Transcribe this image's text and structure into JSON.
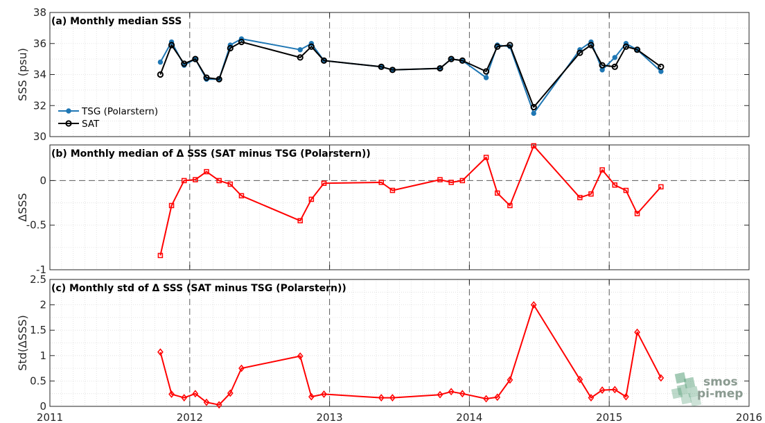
{
  "chart_data": [
    {
      "id": "a",
      "type": "line",
      "title": "(a) Monthly median SSS",
      "ylabel": "SSS (psu)",
      "ylim": [
        30,
        38
      ],
      "yticks": [
        30,
        32,
        34,
        36,
        38
      ],
      "xlim": [
        2011,
        2016
      ],
      "grid": true,
      "legend_position": "bottom-left",
      "x": [
        2011.79,
        2011.87,
        2011.96,
        2012.04,
        2012.12,
        2012.21,
        2012.29,
        2012.37,
        2012.79,
        2012.87,
        2012.96,
        2013.37,
        2013.45,
        2013.79,
        2013.87,
        2013.95,
        2014.12,
        2014.2,
        2014.29,
        2014.46,
        2014.79,
        2014.87,
        2014.95,
        2015.04,
        2015.12,
        2015.2,
        2015.37
      ],
      "series": [
        {
          "name": "TSG (Polarstern)",
          "color": "#1f77b4",
          "marker": "filled-circle",
          "values": [
            34.8,
            36.1,
            34.6,
            35.0,
            33.7,
            33.7,
            35.9,
            36.3,
            35.6,
            36.0,
            34.9,
            34.5,
            34.3,
            34.4,
            35.0,
            34.9,
            33.8,
            35.9,
            35.8,
            31.5,
            35.6,
            36.1,
            34.3,
            35.1,
            36.0,
            35.6,
            34.2
          ]
        },
        {
          "name": "SAT",
          "color": "#000000",
          "marker": "open-circle",
          "values": [
            34.0,
            35.9,
            34.7,
            35.0,
            33.8,
            33.7,
            35.7,
            36.1,
            35.1,
            35.8,
            34.9,
            34.5,
            34.3,
            34.4,
            35.0,
            34.9,
            34.2,
            35.8,
            35.9,
            31.9,
            35.4,
            35.9,
            34.6,
            34.5,
            35.8,
            35.6,
            34.5
          ]
        }
      ]
    },
    {
      "id": "b",
      "type": "line",
      "title": "(b) Monthly median of Δ SSS (SAT minus TSG (Polarstern))",
      "ylabel": "ΔSSS",
      "ylim": [
        -1,
        0.4
      ],
      "yticks": [
        -1,
        -0.5,
        0
      ],
      "ytick_labels": [
        "-1",
        "-0.5",
        "0"
      ],
      "xlim": [
        2011,
        2016
      ],
      "zero_line": true,
      "grid": true,
      "series": [
        {
          "color": "#ff0000",
          "marker": "open-square",
          "x": [
            2011.79,
            2011.87,
            2011.96,
            2012.04,
            2012.12,
            2012.21,
            2012.29,
            2012.37,
            2012.79,
            2012.87,
            2012.96,
            2013.37,
            2013.45,
            2013.79,
            2013.87,
            2013.95,
            2014.12,
            2014.2,
            2014.29,
            2014.46,
            2014.79,
            2014.87,
            2014.95,
            2015.04,
            2015.12,
            2015.2,
            2015.37
          ],
          "values": [
            -0.84,
            -0.28,
            0.0,
            0.01,
            0.1,
            0.0,
            -0.04,
            -0.17,
            -0.45,
            -0.21,
            -0.03,
            -0.02,
            -0.11,
            0.01,
            -0.02,
            0.0,
            0.26,
            -0.14,
            -0.28,
            0.39,
            -0.19,
            -0.15,
            0.12,
            -0.05,
            -0.11,
            -0.37,
            -0.07
          ]
        }
      ]
    },
    {
      "id": "c",
      "type": "line",
      "title": "(c) Monthly std of Δ SSS (SAT minus TSG (Polarstern))",
      "ylabel": "Std(ΔSSS)",
      "ylim": [
        0,
        2.5
      ],
      "yticks": [
        0,
        0.5,
        1,
        1.5,
        2,
        2.5
      ],
      "ytick_labels": [
        "0",
        "0.5",
        "1",
        "1.5",
        "2",
        "2.5"
      ],
      "xlim": [
        2011,
        2016
      ],
      "xticks": [
        2011,
        2012,
        2013,
        2014,
        2015,
        2016
      ],
      "xtick_labels": [
        "2011",
        "2012",
        "2013",
        "2014",
        "2015",
        "2016"
      ],
      "grid": true,
      "series": [
        {
          "color": "#ff0000",
          "marker": "open-diamond",
          "x": [
            2011.79,
            2011.87,
            2011.96,
            2012.04,
            2012.12,
            2012.21,
            2012.29,
            2012.37,
            2012.79,
            2012.87,
            2012.96,
            2013.37,
            2013.45,
            2013.79,
            2013.87,
            2013.95,
            2014.12,
            2014.2,
            2014.29,
            2014.46,
            2014.79,
            2014.87,
            2014.95,
            2015.04,
            2015.12,
            2015.2,
            2015.37
          ],
          "values": [
            1.07,
            0.24,
            0.17,
            0.25,
            0.08,
            0.03,
            0.26,
            0.75,
            0.99,
            0.19,
            0.24,
            0.17,
            0.17,
            0.23,
            0.29,
            0.25,
            0.15,
            0.18,
            0.52,
            2.0,
            0.53,
            0.17,
            0.32,
            0.33,
            0.19,
            1.46,
            0.56
          ]
        }
      ]
    }
  ],
  "watermark": {
    "line1": "smos",
    "line2": "pi-mep",
    "color": "#5aa07a"
  }
}
